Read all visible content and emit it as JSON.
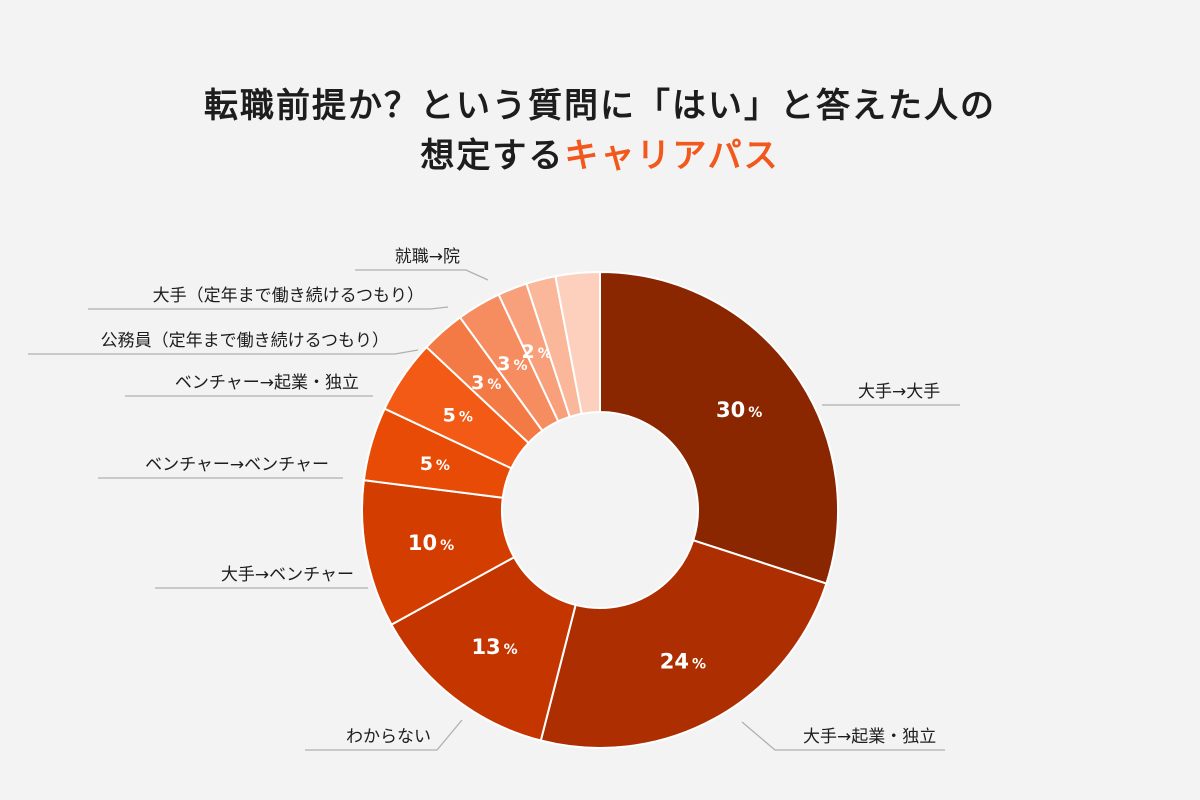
{
  "title": {
    "line1": "転職前提か？という質問に「はい」と答えた人の",
    "line2_prefix": "想定する",
    "line2_highlight": "キャリアパス"
  },
  "colors": {
    "highlight": "#f2571c",
    "background": "#f3f3f3"
  },
  "chart_data": {
    "type": "pie",
    "donut": true,
    "unit": "%",
    "slices": [
      {
        "label": "大手→大手",
        "value": 30,
        "display": "30",
        "color": "#8a2600"
      },
      {
        "label": "大手→起業・独立",
        "value": 24,
        "display": "24",
        "color": "#ad2e00"
      },
      {
        "label": "わからない",
        "value": 13,
        "display": "13",
        "color": "#c43500"
      },
      {
        "label": "大手→ベンチャー",
        "value": 10,
        "display": "10",
        "color": "#d43d00"
      },
      {
        "label": "ベンチャー→ベンチャー",
        "value": 5,
        "display": "5",
        "color": "#e84b05"
      },
      {
        "label": "ベンチャー→起業・独立",
        "value": 5,
        "display": "5",
        "color": "#f25a15"
      },
      {
        "label": "公務員（定年まで働き続けるつもり）",
        "value": 3,
        "display": "3",
        "color": "#f47a45"
      },
      {
        "label": "大手（定年まで働き続けるつもり）",
        "value": 3,
        "display": "3",
        "color": "#f68d60"
      },
      {
        "label": "就職→院",
        "value": 2,
        "display": "2",
        "color": "#f8a07c"
      },
      {
        "label": "",
        "value": 2,
        "display": "",
        "color": "#fab79a"
      },
      {
        "label": "",
        "value": 3,
        "display": "",
        "color": "#fcd0bc"
      }
    ]
  }
}
